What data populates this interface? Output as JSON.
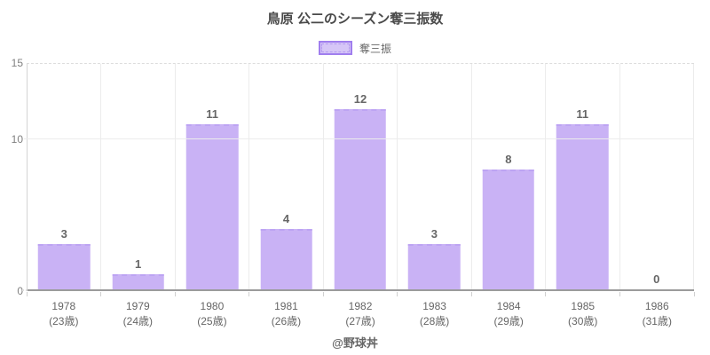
{
  "chart_data": {
    "type": "bar",
    "title": "鳥原 公二のシーズン奪三振数",
    "legend_label": "奪三振",
    "legend_position": "top",
    "grid": true,
    "categories": [
      {
        "year": "1978",
        "age": "(23歳)"
      },
      {
        "year": "1979",
        "age": "(24歳)"
      },
      {
        "year": "1980",
        "age": "(25歳)"
      },
      {
        "year": "1981",
        "age": "(26歳)"
      },
      {
        "year": "1982",
        "age": "(27歳)"
      },
      {
        "year": "1983",
        "age": "(28歳)"
      },
      {
        "year": "1984",
        "age": "(29歳)"
      },
      {
        "year": "1985",
        "age": "(30歳)"
      },
      {
        "year": "1986",
        "age": "(31歳)"
      }
    ],
    "series": [
      {
        "name": "奪三振",
        "values": [
          3,
          1,
          11,
          4,
          12,
          3,
          8,
          11,
          0
        ]
      }
    ],
    "xlabel": "",
    "ylabel": "",
    "ylim": [
      0,
      15
    ],
    "yticks": [
      0,
      10,
      15
    ],
    "colors": {
      "bar_fill": "#c9b2f5",
      "bar_border": "#bda4f3",
      "swatch_fill": "#d6c6f7",
      "swatch_border": "#a07eee",
      "swatch_dash": "#b49af0",
      "title": "#4a4a4a",
      "value_label": "#666666",
      "tick_label": "#666666",
      "footer": "#666666",
      "grid": "#ececec",
      "grid_dash": "#dddddd",
      "axis": "#d4d4d4",
      "baseline": "#9b9b9b",
      "tick_mark": "#d0d0d0"
    }
  },
  "footer": {
    "watermark": "@野球丼"
  }
}
